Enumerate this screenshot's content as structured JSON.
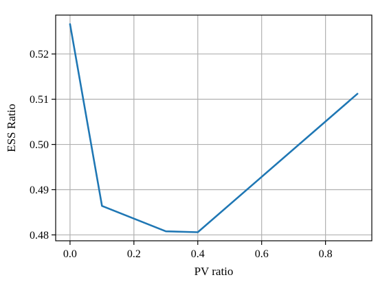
{
  "chart_data": {
    "type": "line",
    "title": "",
    "xlabel": "PV ratio",
    "ylabel": "ESS Ratio",
    "xlim": [
      -0.045,
      0.945
    ],
    "ylim": [
      0.4787,
      0.5286
    ],
    "xticks": [
      0.0,
      0.2,
      0.4,
      0.6,
      0.8
    ],
    "xtick_labels": [
      "0.0",
      "0.2",
      "0.4",
      "0.6",
      "0.8"
    ],
    "yticks": [
      0.48,
      0.49,
      0.5,
      0.51,
      0.52
    ],
    "ytick_labels": [
      "0.48",
      "0.49",
      "0.50",
      "0.51",
      "0.52"
    ],
    "grid": true,
    "series": [
      {
        "color": "#1f77b4",
        "x": [
          0.0,
          0.1,
          0.3,
          0.4,
          0.9
        ],
        "y": [
          0.5266,
          0.4864,
          0.4808,
          0.4806,
          0.5112
        ]
      }
    ]
  }
}
